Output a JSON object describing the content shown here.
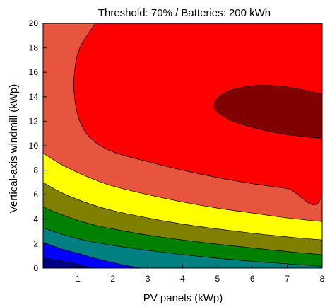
{
  "chart_data": {
    "type": "contour",
    "title": "Threshold: 70% / Batteries: 200 kWh",
    "xlabel": "PV panels (kWp)",
    "ylabel": "Vertical-axis windmill (kWp)",
    "xlim": [
      0,
      8
    ],
    "ylim": [
      0,
      20
    ],
    "x_ticks": [
      1,
      2,
      3,
      4,
      5,
      6,
      7,
      8
    ],
    "y_ticks": [
      0,
      2,
      4,
      6,
      8,
      10,
      12,
      14,
      16,
      18,
      20
    ],
    "grid": false,
    "levels": [
      {
        "color": "#000080",
        "boundary": [
          [
            0,
            0.8
          ],
          [
            0.5,
            0.6
          ],
          [
            1,
            0.3
          ],
          [
            1.4,
            0
          ]
        ]
      },
      {
        "color": "#0000ff",
        "boundary": [
          [
            0,
            2.1
          ],
          [
            0.5,
            1.6
          ],
          [
            1,
            1.2
          ],
          [
            1.5,
            0.8
          ],
          [
            2,
            0.45
          ],
          [
            2.5,
            0.15
          ],
          [
            2.8,
            0
          ]
        ]
      },
      {
        "color": "#008080",
        "boundary": [
          [
            0,
            3.3
          ],
          [
            0.5,
            2.8
          ],
          [
            1,
            2.4
          ],
          [
            1.5,
            2.1
          ],
          [
            2,
            1.85
          ],
          [
            3,
            1.45
          ],
          [
            4,
            1.1
          ],
          [
            5,
            0.8
          ],
          [
            6,
            0.55
          ],
          [
            7,
            0.35
          ],
          [
            8,
            0.15
          ]
        ]
      },
      {
        "color": "#008000",
        "boundary": [
          [
            0,
            5.0
          ],
          [
            0.5,
            4.4
          ],
          [
            1,
            3.9
          ],
          [
            1.5,
            3.5
          ],
          [
            2,
            3.2
          ],
          [
            3,
            2.7
          ],
          [
            4,
            2.3
          ],
          [
            5,
            1.95
          ],
          [
            6,
            1.65
          ],
          [
            7,
            1.35
          ],
          [
            8,
            1.1
          ]
        ]
      },
      {
        "color": "#808000",
        "boundary": [
          [
            0,
            7.0
          ],
          [
            0.5,
            6.2
          ],
          [
            1,
            5.6
          ],
          [
            1.5,
            5.1
          ],
          [
            2,
            4.7
          ],
          [
            3,
            4.1
          ],
          [
            4,
            3.6
          ],
          [
            5,
            3.2
          ],
          [
            6,
            2.85
          ],
          [
            7,
            2.55
          ],
          [
            8,
            2.3
          ]
        ]
      },
      {
        "color": "#ffff00",
        "boundary": [
          [
            0,
            9.4
          ],
          [
            0.5,
            8.5
          ],
          [
            1,
            7.8
          ],
          [
            1.5,
            7.2
          ],
          [
            2,
            6.7
          ],
          [
            3,
            6.0
          ],
          [
            4,
            5.4
          ],
          [
            5,
            4.9
          ],
          [
            6,
            4.5
          ],
          [
            7,
            4.1
          ],
          [
            8,
            3.8
          ]
        ]
      },
      {
        "color": "#e8553f",
        "boundary": [
          [
            0,
            20
          ],
          [
            8,
            20
          ]
        ]
      }
    ],
    "regions": [
      {
        "color": "#ff0000",
        "outline": [
          [
            1.5,
            20
          ],
          [
            1.05,
            18
          ],
          [
            0.9,
            16
          ],
          [
            0.9,
            14
          ],
          [
            1.05,
            12
          ],
          [
            1.4,
            10.5
          ],
          [
            2,
            9.5
          ],
          [
            3,
            8.7
          ],
          [
            4,
            8.0
          ],
          [
            5,
            7.4
          ],
          [
            6,
            6.9
          ],
          [
            7,
            6.5
          ],
          [
            8,
            6.1
          ],
          [
            8,
            20
          ]
        ]
      },
      {
        "color": "#800000",
        "outline": [
          [
            8,
            14.2
          ],
          [
            7,
            14.8
          ],
          [
            6,
            14.9
          ],
          [
            5.2,
            14.3
          ],
          [
            4.9,
            13.2
          ],
          [
            5.3,
            12.2
          ],
          [
            6,
            11.5
          ],
          [
            7,
            10.9
          ],
          [
            8,
            10.6
          ]
        ]
      }
    ]
  }
}
